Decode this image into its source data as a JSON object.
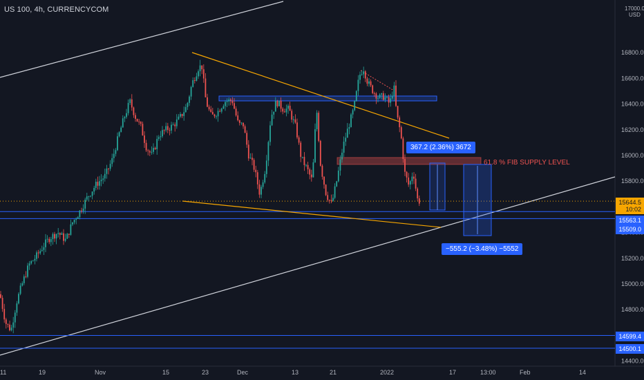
{
  "header": {
    "symbol": "US 100, 4h, CURRENCYCOM",
    "currency": "USD",
    "top_label": "17000.0"
  },
  "chart_data": {
    "type": "candlestick",
    "title": "US 100, 4h, CURRENCYCOM",
    "ylim": [
      14400,
      17200
    ],
    "y_ticks": [
      "17000.0",
      "16800.0",
      "16600.0",
      "16400.0",
      "16200.0",
      "16000.0",
      "15800.0",
      "15600.0",
      "15400.0",
      "15200.0",
      "15000.0",
      "14800.0",
      "14600.0",
      "14400.0"
    ],
    "x_ticks": [
      "11",
      "19",
      "Nov",
      "15",
      "23",
      "Dec",
      "13",
      "21",
      "2022",
      "17",
      "13:00",
      "Feb",
      "14"
    ],
    "grid": false,
    "current_price": "15644.5",
    "countdown": "10:02",
    "levels": [
      "15563.1",
      "15509.0",
      "14599.4",
      "14500.1"
    ],
    "measure_up": "367.2 (2.36%) 3672",
    "measure_down": "−555.2 (−3.48%) −5552",
    "fib_label": "61.8 % FIB SUPPLY LEVEL",
    "colors": {
      "up": "#26a69a",
      "down": "#ef5350",
      "trend": "#f7a600",
      "level": "#2962ff",
      "support": "#d1d4dc",
      "bg": "#131722"
    },
    "price_path": [
      [
        0,
        14920
      ],
      [
        8,
        14700
      ],
      [
        16,
        14640
      ],
      [
        24,
        14860
      ],
      [
        32,
        15000
      ],
      [
        42,
        15150
      ],
      [
        52,
        15210
      ],
      [
        62,
        15290
      ],
      [
        72,
        15360
      ],
      [
        84,
        15400
      ],
      [
        95,
        15340
      ],
      [
        105,
        15480
      ],
      [
        115,
        15560
      ],
      [
        127,
        15680
      ],
      [
        140,
        15780
      ],
      [
        152,
        15840
      ],
      [
        162,
        15960
      ],
      [
        172,
        16160
      ],
      [
        180,
        16300
      ],
      [
        188,
        16420
      ],
      [
        196,
        16300
      ],
      [
        204,
        16220
      ],
      [
        212,
        16060
      ],
      [
        220,
        16000
      ],
      [
        230,
        16160
      ],
      [
        240,
        16200
      ],
      [
        250,
        16230
      ],
      [
        260,
        16290
      ],
      [
        270,
        16380
      ],
      [
        278,
        16560
      ],
      [
        287,
        16680
      ],
      [
        292,
        16700
      ],
      [
        298,
        16420
      ],
      [
        306,
        16300
      ],
      [
        315,
        16340
      ],
      [
        325,
        16420
      ],
      [
        336,
        16430
      ],
      [
        345,
        16240
      ],
      [
        352,
        16240
      ],
      [
        360,
        16000
      ],
      [
        368,
        15900
      ],
      [
        376,
        15700
      ],
      [
        384,
        15900
      ],
      [
        392,
        16300
      ],
      [
        400,
        16420
      ],
      [
        410,
        16360
      ],
      [
        418,
        16360
      ],
      [
        428,
        16220
      ],
      [
        436,
        15980
      ],
      [
        444,
        15900
      ],
      [
        452,
        15800
      ],
      [
        458,
        16380
      ],
      [
        464,
        15920
      ],
      [
        472,
        15700
      ],
      [
        480,
        15620
      ],
      [
        488,
        15820
      ],
      [
        496,
        16060
      ],
      [
        504,
        16220
      ],
      [
        512,
        16360
      ],
      [
        520,
        16620
      ],
      [
        526,
        16680
      ],
      [
        532,
        16570
      ],
      [
        540,
        16500
      ],
      [
        548,
        16450
      ],
      [
        556,
        16460
      ],
      [
        564,
        16400
      ],
      [
        570,
        16540
      ],
      [
        574,
        16320
      ],
      [
        580,
        16170
      ],
      [
        586,
        15860
      ],
      [
        592,
        15760
      ],
      [
        598,
        15880
      ],
      [
        604,
        15660
      ],
      [
        607,
        15644
      ]
    ]
  }
}
